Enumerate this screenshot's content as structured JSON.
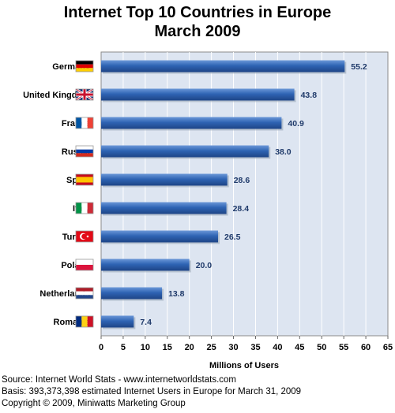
{
  "chart_data": {
    "type": "bar",
    "orientation": "horizontal",
    "title": "Internet Top 10 Countries in Europe",
    "subtitle": "March 2009",
    "xlabel": "Millions of Users",
    "ylabel": "",
    "xlim": [
      0,
      65
    ],
    "xticks": [
      0,
      5,
      10,
      15,
      20,
      25,
      30,
      35,
      40,
      45,
      50,
      55,
      60,
      65
    ],
    "grid": true,
    "categories": [
      "Germany",
      "United Kingdom",
      "France",
      "Russia",
      "Spain",
      "Italy",
      "Turkey",
      "Poland",
      "Netherlands",
      "Romania"
    ],
    "values": [
      55.2,
      43.8,
      40.9,
      38.0,
      28.6,
      28.4,
      26.5,
      20.0,
      13.8,
      7.4
    ],
    "value_labels": [
      "55.2",
      "43.8",
      "40.9",
      "38.0",
      "28.6",
      "28.4",
      "26.5",
      "20.0",
      "13.8",
      "7.4"
    ],
    "colors": {
      "bar": "#2f64b4",
      "plot_bg": "#dde5f1",
      "label": "#1f3a6a"
    },
    "flags": [
      "germany-flag-icon",
      "uk-flag-icon",
      "france-flag-icon",
      "russia-flag-icon",
      "spain-flag-icon",
      "italy-flag-icon",
      "turkey-flag-icon",
      "poland-flag-icon",
      "netherlands-flag-icon",
      "romania-flag-icon"
    ]
  },
  "footer": {
    "source": "Source: Internet World Stats  -  www.internetworldstats.com",
    "basis": "Basis: 393,373,398 estimated Internet  Users in Europe for March 31, 2009",
    "copyright": "Copyright © 2009, Miniwatts Marketing Group"
  }
}
